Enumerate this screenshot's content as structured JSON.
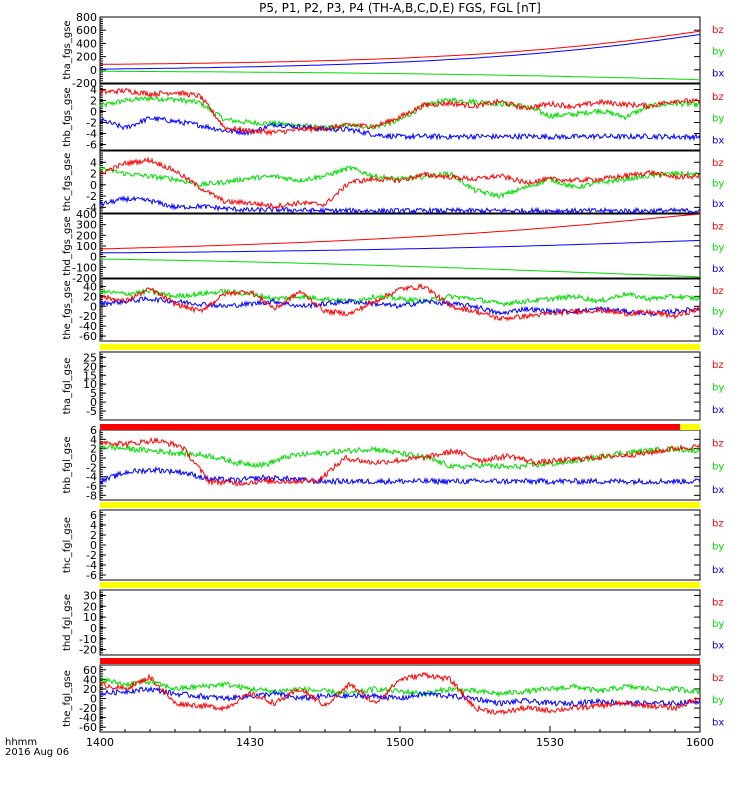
{
  "title": "P5, P1, P2, P3, P4 (TH-A,B,C,D,E) FGS, FGL [nT]",
  "footer": {
    "xaxis_label": "hhmm",
    "date": "2016 Aug 06"
  },
  "colors": {
    "bz": "#ff0000",
    "by": "#00dd00",
    "bx": "#0000ff",
    "bar_yellow": "#ffff00",
    "bar_red": "#ff0000",
    "axis": "#000000"
  },
  "chart_data": {
    "type": "line",
    "x_ticks": [
      "1400",
      "1430",
      "1500",
      "1530",
      "1600"
    ],
    "x_range": [
      "14:00",
      "16:00"
    ],
    "components": [
      "bz",
      "by",
      "bx"
    ],
    "panels": [
      {
        "ylabel": "tha_fgs_gse",
        "ylim": [
          -200,
          800
        ],
        "yticks": [
          "800",
          "600",
          "400",
          "200",
          "0",
          "-200"
        ],
        "series": [
          {
            "name": "bz",
            "values": [
              82,
              88,
              94,
              102,
              112,
              124,
              138,
              155,
              176,
              202,
              234,
              272,
              318,
              372,
              435,
              505,
              585
            ]
          },
          {
            "name": "by",
            "values": [
              -22,
              -25,
              -28,
              -31,
              -35,
              -40,
              -45,
              -51,
              -58,
              -66,
              -75,
              -85,
              -96,
              -108,
              -121,
              -135,
              -150
            ]
          },
          {
            "name": "bx",
            "values": [
              10,
              17,
              25,
              34,
              45,
              58,
              74,
              93,
              116,
              144,
              178,
              218,
              265,
              320,
              383,
              455,
              535
            ]
          }
        ]
      },
      {
        "ylabel": "thb_fgs_gse",
        "ylim": [
          -7,
          5
        ],
        "yticks": [
          "4",
          "2",
          "0",
          "-2",
          "-4",
          "-6"
        ],
        "series": [
          {
            "name": "bz",
            "values": [
              3.5,
              3.8,
              3.2,
              3.5,
              2.8,
              -3.0,
              -3.5,
              -3.8,
              -3.3,
              -3.0,
              -2.5,
              -2.7,
              -1.0,
              1.2,
              1.5,
              1.0,
              1.8,
              0.6,
              1.4,
              0.9,
              1.7,
              1.3,
              1.0,
              2.0,
              1.8
            ]
          },
          {
            "name": "by",
            "values": [
              1.0,
              2.0,
              2.4,
              2.2,
              1.6,
              -1.5,
              -2.0,
              -2.2,
              -2.5,
              -3.1,
              -2.5,
              -2.8,
              -1.6,
              1.2,
              2.1,
              1.8,
              1.4,
              1.0,
              -0.8,
              -0.5,
              0.2,
              -1.0,
              1.0,
              1.5,
              1.2
            ]
          },
          {
            "name": "bx",
            "values": [
              -1.5,
              -3.0,
              -1.2,
              -1.8,
              -2.5,
              -3.5,
              -3.8,
              -2.3,
              -2.8,
              -3.2,
              -3.3,
              -4.2,
              -4.6,
              -4.5,
              -4.6,
              -4.5,
              -4.6,
              -4.5,
              -4.6,
              -4.6,
              -4.5,
              -4.6,
              -4.5,
              -4.6,
              -4.6
            ]
          }
        ]
      },
      {
        "ylabel": "thc_fgs_gse",
        "ylim": [
          -5,
          6
        ],
        "yticks": [
          "4",
          "2",
          "0",
          "-2",
          "-4"
        ],
        "series": [
          {
            "name": "bz",
            "values": [
              2.0,
              3.8,
              4.4,
              2.5,
              -0.5,
              -3.0,
              -3.2,
              -3.8,
              -3.2,
              -3.5,
              0.5,
              1.0,
              0.8,
              1.8,
              1.4,
              1.0,
              1.6,
              0.4,
              1.0,
              0.8,
              1.0,
              1.6,
              2.2,
              1.4,
              1.5
            ]
          },
          {
            "name": "by",
            "values": [
              3.0,
              2.0,
              1.5,
              1.0,
              0.0,
              0.5,
              1.2,
              1.5,
              0.8,
              1.6,
              3.0,
              1.5,
              1.0,
              1.5,
              2.0,
              -1.0,
              -2.0,
              -0.5,
              1.0,
              -0.5,
              0.4,
              1.0,
              1.6,
              2.0,
              1.8
            ]
          },
          {
            "name": "bx",
            "values": [
              -3.5,
              -2.5,
              -2.8,
              -4.0,
              -3.8,
              -4.2,
              -4.5,
              -4.4,
              -4.5,
              -4.6,
              -4.6,
              -4.6,
              -4.6,
              -4.6,
              -4.6,
              -4.6,
              -4.6,
              -4.6,
              -4.6,
              -4.6,
              -4.6,
              -4.6,
              -4.6,
              -4.6,
              -4.6
            ]
          }
        ]
      },
      {
        "ylabel": "thd_fgs_gse",
        "ylim": [
          -200,
          400
        ],
        "yticks": [
          "400",
          "300",
          "200",
          "100",
          "0",
          "-100",
          "-200"
        ],
        "series": [
          {
            "name": "bz",
            "values": [
              72,
              82,
              92,
              103,
              115,
              128,
              143,
              160,
              178,
              198,
              220,
              245,
              272,
              302,
              335,
              368,
              400
            ]
          },
          {
            "name": "by",
            "values": [
              -22,
              -28,
              -34,
              -41,
              -49,
              -58,
              -67,
              -77,
              -88,
              -99,
              -111,
              -124,
              -137,
              -150,
              -163,
              -176,
              -190
            ]
          },
          {
            "name": "bx",
            "values": [
              35,
              38,
              41,
              45,
              49,
              54,
              59,
              65,
              72,
              79,
              87,
              96,
              106,
              117,
              128,
              140,
              152
            ]
          }
        ]
      },
      {
        "ylabel": "the_fgs_gse",
        "ylim": [
          -70,
          55
        ],
        "yticks": [
          "40",
          "20",
          "0",
          "-20",
          "-40",
          "-60"
        ],
        "series": [
          {
            "name": "bz",
            "values": [
              20,
              10,
              35,
              5,
              -10,
              25,
              30,
              -5,
              30,
              -10,
              -15,
              10,
              35,
              40,
              0,
              -10,
              -25,
              -20,
              -15,
              -10,
              -8,
              -15,
              -12,
              -20,
              -5
            ]
          },
          {
            "name": "by",
            "values": [
              30,
              25,
              30,
              20,
              25,
              30,
              25,
              15,
              20,
              15,
              10,
              20,
              15,
              10,
              20,
              15,
              5,
              10,
              15,
              20,
              10,
              25,
              15,
              20,
              15
            ]
          },
          {
            "name": "bx",
            "values": [
              5,
              10,
              15,
              10,
              5,
              0,
              5,
              10,
              0,
              5,
              10,
              5,
              0,
              10,
              5,
              0,
              -15,
              -5,
              -10,
              -10,
              -5,
              -10,
              -15,
              -10,
              -5
            ]
          }
        ]
      },
      {
        "ylabel": "tha_fgl_gse",
        "ylim": [
          -10,
          28
        ],
        "yticks": [
          "25",
          "20",
          "15",
          "10",
          "5",
          "0",
          "-5"
        ],
        "series": []
      },
      {
        "ylabel": "thb_fgl_gse",
        "ylim": [
          -9,
          6
        ],
        "yticks": [
          "6",
          "4",
          "2",
          "0",
          "-2",
          "-4",
          "-6",
          "-8"
        ],
        "series": [
          {
            "name": "bz",
            "values": [
              3.5,
              3.0,
              3.8,
              2.5,
              -5.0,
              -5.4,
              -5.0,
              -5.0,
              -4.8,
              0.0,
              -1.0,
              -0.5,
              0.2,
              1.5,
              -0.5,
              0.5,
              -1.0,
              -0.5,
              0.0,
              0.5,
              1.0,
              2.0,
              2.5
            ]
          },
          {
            "name": "by",
            "values": [
              2.5,
              2.0,
              1.5,
              1.0,
              0.5,
              -1.0,
              -1.5,
              0.5,
              1.0,
              1.5,
              2.0,
              1.0,
              0.0,
              -2.0,
              -1.5,
              -2.0,
              -1.5,
              -1.0,
              0.0,
              1.0,
              1.5,
              2.0,
              1.5
            ]
          },
          {
            "name": "bx",
            "values": [
              -5.0,
              -3.0,
              -2.5,
              -3.0,
              -4.5,
              -4.8,
              -4.2,
              -4.5,
              -5.0,
              -5.0,
              -5.0,
              -5.0,
              -5.0,
              -5.0,
              -5.0,
              -5.0,
              -5.0,
              -5.0,
              -5.0,
              -5.0,
              -5.0,
              -5.0,
              -5.0
            ]
          }
        ]
      },
      {
        "ylabel": "thc_fgl_gse",
        "ylim": [
          -7,
          7
        ],
        "yticks": [
          "6",
          "4",
          "2",
          "0",
          "-2",
          "-4",
          "-6"
        ],
        "series": []
      },
      {
        "ylabel": "thd_fgl_gse",
        "ylim": [
          -25,
          35
        ],
        "yticks": [
          "30",
          "20",
          "10",
          "0",
          "-10",
          "-20"
        ],
        "series": []
      },
      {
        "ylabel": "the_fgl_gse",
        "ylim": [
          -70,
          70
        ],
        "yticks": [
          "60",
          "40",
          "20",
          "0",
          "-20",
          "-40",
          "-60"
        ],
        "series": [
          {
            "name": "bz",
            "values": [
              30,
              20,
              45,
              -10,
              -15,
              -20,
              10,
              -10,
              20,
              -15,
              30,
              -10,
              40,
              50,
              40,
              -20,
              -30,
              -20,
              -25,
              -20,
              -15,
              -10,
              -15,
              -20,
              0
            ]
          },
          {
            "name": "by",
            "values": [
              40,
              30,
              35,
              20,
              25,
              30,
              20,
              15,
              20,
              15,
              10,
              20,
              15,
              10,
              20,
              15,
              10,
              15,
              20,
              25,
              15,
              25,
              20,
              20,
              15
            ]
          },
          {
            "name": "bx",
            "values": [
              10,
              15,
              20,
              10,
              5,
              0,
              5,
              10,
              0,
              5,
              5,
              5,
              0,
              10,
              5,
              0,
              -10,
              -5,
              -10,
              -10,
              -5,
              -10,
              -10,
              -10,
              -5
            ]
          }
        ]
      }
    ]
  }
}
